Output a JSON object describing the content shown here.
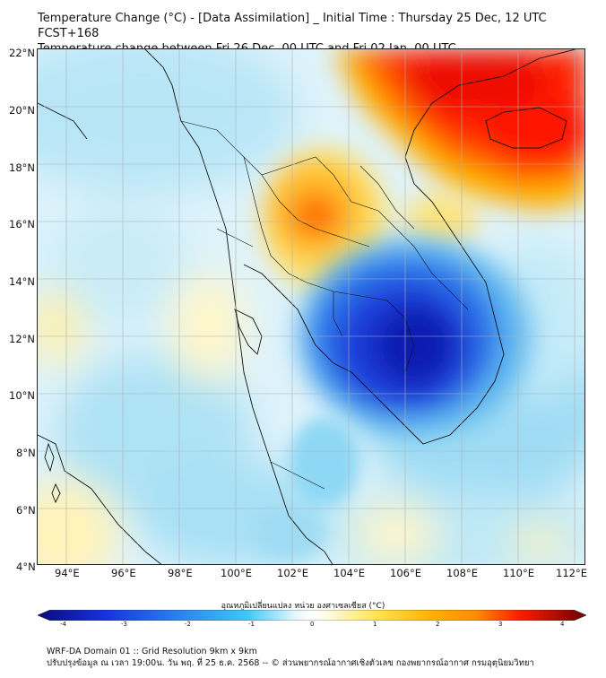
{
  "title": {
    "line1": "Temperature Change (°C) - [Data Assimilation] _ Initial Time : Thursday 25 Dec, 12 UTC FCST+168",
    "line2": "Temperature change between Fri 26 Dec, 00 UTC and Fri 02 Jan, 00 UTC"
  },
  "map": {
    "lat_labels": [
      "22°N",
      "20°N",
      "18°N",
      "16°N",
      "14°N",
      "12°N",
      "10°N",
      "8°N",
      "6°N",
      "4°N"
    ],
    "lon_labels": [
      "94°E",
      "96°E",
      "98°E",
      "100°E",
      "102°E",
      "104°E",
      "106°E",
      "108°E",
      "110°E",
      "112°E"
    ],
    "lat_range": [
      4,
      22
    ],
    "lon_range": [
      93,
      112.5
    ],
    "grid": true
  },
  "colorbar": {
    "title": "อุณหภูมิเปลี่ยนแปลง หน่วย องศาเซลเซียส (°C)",
    "ticks": [
      "-4",
      "-3",
      "-2",
      "-1",
      "0",
      "1",
      "2",
      "3",
      "4"
    ],
    "range": [
      -4,
      4
    ],
    "colors": {
      "dark_blue": "#0a0a7a",
      "blue": "#1530e0",
      "cyan": "#3cc8f5",
      "white": "#ffffff",
      "yellow": "#ffe34a",
      "orange": "#ff8a00",
      "red": "#ff1a00",
      "dark_red": "#6e0000"
    }
  },
  "footer": {
    "line1": "WRF-DA Domain 01 :: Grid Resolution 9km x 9km",
    "line2": "ปรับปรุงข้อมูล ณ เวลา 19:00น. วัน พฤ. ที่ 25 ธ.ค. 2568 -- © ส่วนพยากรณ์อากาศเชิงตัวเลข กองพยากรณ์อากาศ กรมอุตุนิยมวิทยา"
  }
}
